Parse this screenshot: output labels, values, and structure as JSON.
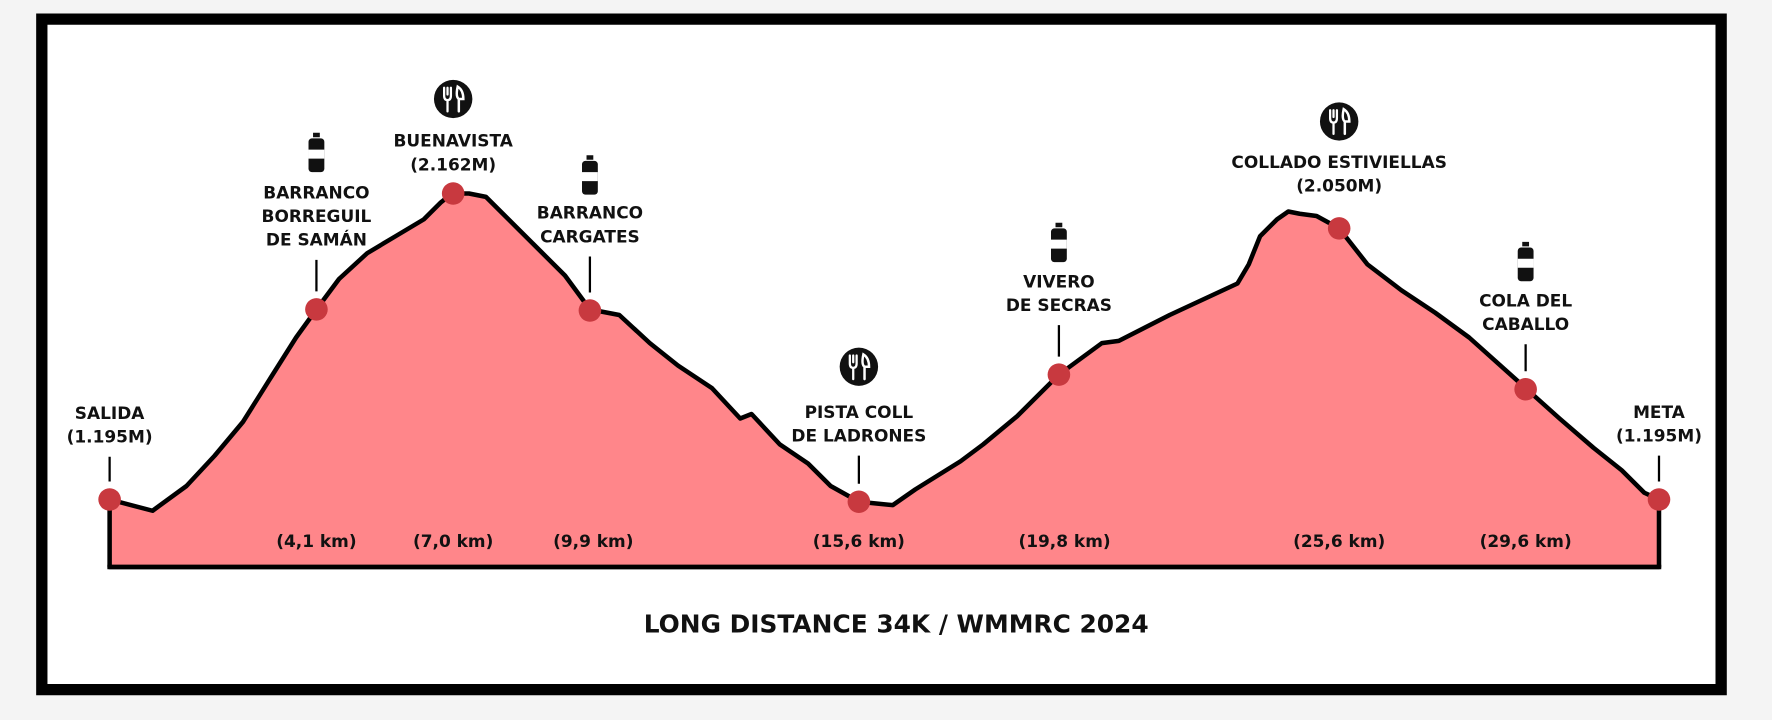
{
  "title": "LONG DISTANCE 34K / WMMRC 2024",
  "checkpoints": [
    {
      "label": [
        "SALIDA",
        "(1.195M)"
      ]
    },
    {
      "label": [
        "BARRANCO",
        "BORREGUIL",
        "DE SAMÁN"
      ],
      "distance": "(4,1 km)"
    },
    {
      "label": [
        "BUENAVISTA",
        "(2.162M)"
      ],
      "distance": "(7,0 km)"
    },
    {
      "label": [
        "BARRANCO",
        "CARGATES"
      ],
      "distance": "(9,9 km)"
    },
    {
      "label": [
        "PISTA COLL",
        "DE LADRONES"
      ],
      "distance": "(15,6 km)"
    },
    {
      "label": [
        "VIVERO",
        "DE SECRAS"
      ],
      "distance": "(19,8 km)"
    },
    {
      "label": [
        "COLLADO ESTIVIELLAS",
        "(2.050M)"
      ],
      "distance": "(25,6 km)"
    },
    {
      "label": [
        "COLA DEL",
        "CABALLO"
      ],
      "distance": "(29,6 km)"
    },
    {
      "label": [
        "META",
        "(1.195M)"
      ]
    }
  ]
}
